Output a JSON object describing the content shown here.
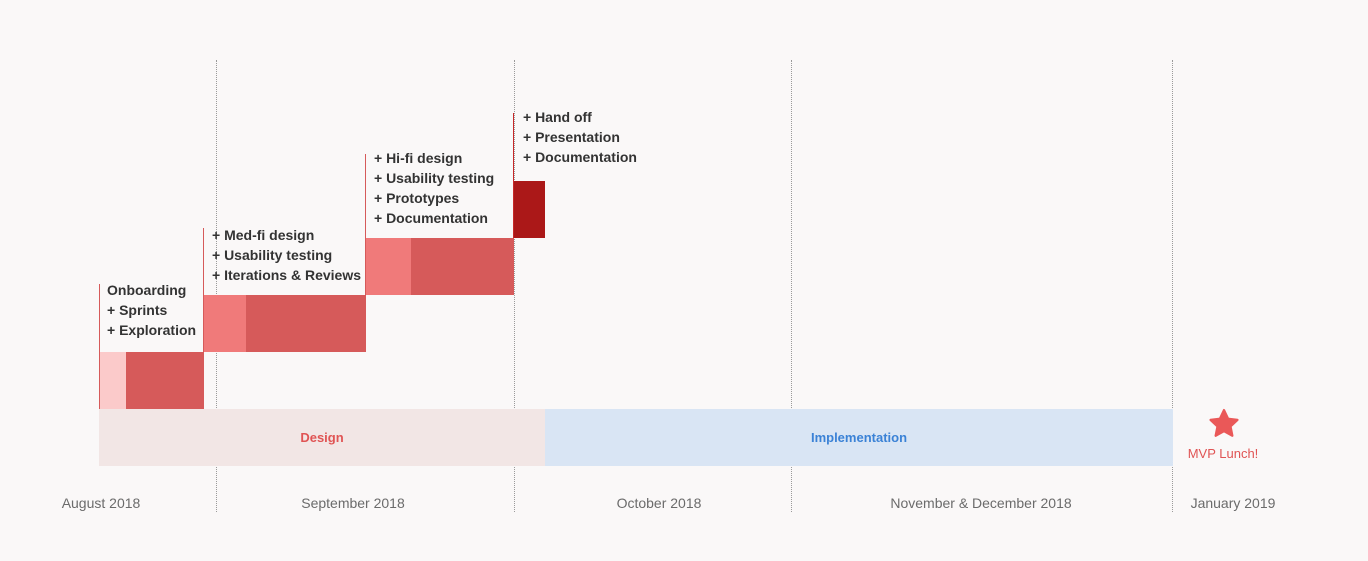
{
  "phases": [
    {
      "label": "Design",
      "color": "#e05454",
      "bg": "#f2e6e5"
    },
    {
      "label": "Implementation",
      "color": "#3b82d6",
      "bg": "#d9e5f4"
    }
  ],
  "stages": [
    {
      "items": [
        "Onboarding",
        "+ Sprints",
        "+ Exploration"
      ],
      "colors": [
        "#fbcaca",
        "#d65a5a"
      ],
      "accent": "#d65a5a"
    },
    {
      "items": [
        "+ Med-fi design",
        "+ Usability testing",
        "+ Iterations & Reviews"
      ],
      "colors": [
        "#f07a7a",
        "#d65a5a"
      ],
      "accent": "#d65a5a"
    },
    {
      "items": [
        "+ Hi-fi design",
        "+ Usability testing",
        "+ Prototypes",
        "+ Documentation"
      ],
      "colors": [
        "#f07a7a",
        "#d65a5a"
      ],
      "accent": "#d65a5a"
    },
    {
      "items": [
        "+ Hand off",
        "+ Presentation",
        "+ Documentation"
      ],
      "colors": [
        "#ab1818"
      ],
      "accent": "#c62828"
    }
  ],
  "months": [
    "August 2018",
    "September 2018",
    "October 2018",
    "November & December 2018",
    "January 2019"
  ],
  "milestone": {
    "label": "MVP Lunch!",
    "icon": "star-icon",
    "color": "#e05454"
  }
}
